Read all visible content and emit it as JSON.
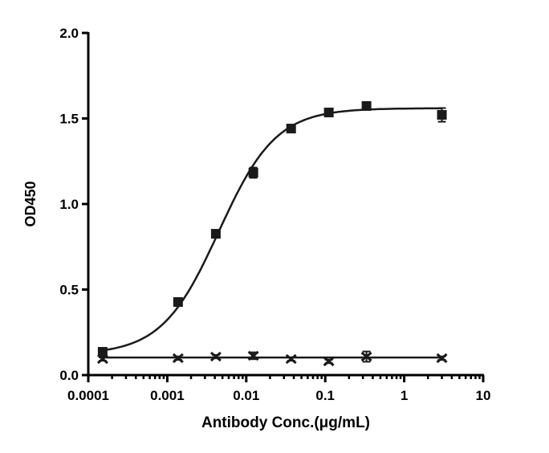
{
  "chart_data": {
    "type": "scatter",
    "title": "",
    "xlabel": "Antibody Conc.(μg/mL)",
    "ylabel": "OD450",
    "xscale": "log",
    "xlim": [
      0.0001,
      10
    ],
    "ylim": [
      0,
      2.0
    ],
    "xticks": [
      "0.0001",
      "0.001",
      "0.01",
      "0.1",
      "1",
      "10"
    ],
    "yticks": [
      "0.0",
      "0.5",
      "1.0",
      "1.5",
      "2.0"
    ],
    "grid": false,
    "legend": "none",
    "series": [
      {
        "marker": "square",
        "color": "#1a1a1a",
        "x": [
          0.000152,
          0.00137,
          0.00412,
          0.0123,
          0.037,
          0.111,
          0.333,
          3
        ],
        "y": [
          0.136,
          0.427,
          0.826,
          1.183,
          1.441,
          1.535,
          1.573,
          1.521
        ],
        "error": [
          0.02,
          0.01,
          0.02,
          0.03,
          0.01,
          0.01,
          0.01,
          0.04
        ],
        "fit": {
          "model": "4PL",
          "bottom": 0.12,
          "top": 1.56,
          "ec50": 0.0045,
          "hill": 1.2
        }
      },
      {
        "marker": "x",
        "color": "#1a1a1a",
        "x": [
          0.000152,
          0.00137,
          0.00412,
          0.0123,
          0.037,
          0.111,
          0.333,
          3
        ],
        "y": [
          0.094,
          0.099,
          0.108,
          0.113,
          0.094,
          0.08,
          0.108,
          0.099
        ],
        "error": [
          0.01,
          0.01,
          0.01,
          0.02,
          0.01,
          0.01,
          0.03,
          0.01
        ],
        "fit": {
          "model": "constant",
          "value": 0.103
        }
      }
    ]
  }
}
